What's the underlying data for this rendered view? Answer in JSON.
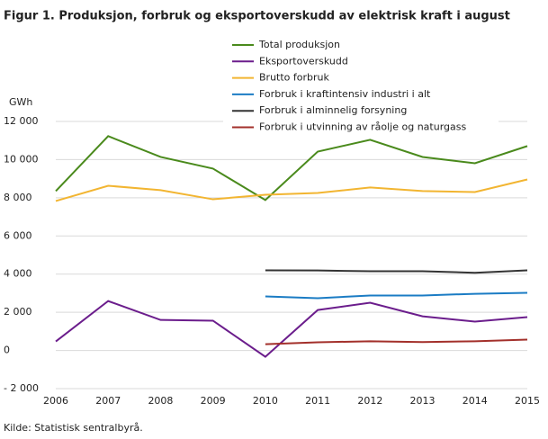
{
  "chart_data": {
    "type": "line",
    "title": "Figur 1. Produksjon, forbruk og eksportoverskudd av elektrisk kraft i august",
    "y_label": "GWh",
    "source": "Kilde: Statistisk sentralbyrå.",
    "categories": [
      "2006",
      "2007",
      "2008",
      "2009",
      "2010",
      "2011",
      "2012",
      "2013",
      "2014",
      "2015"
    ],
    "ylim": [
      -2000,
      12000
    ],
    "yticks": [
      {
        "value": -2000,
        "label": "- 2 000"
      },
      0,
      {
        "value": 2000,
        "label": "2 000"
      },
      {
        "value": 4000,
        "label": "4 000"
      },
      {
        "value": 6000,
        "label": "6 000"
      },
      {
        "value": 8000,
        "label": "8 000"
      },
      {
        "value": 10000,
        "label": "10 000"
      },
      {
        "value": 12000,
        "label": "12 000"
      }
    ],
    "grid": true,
    "series": [
      {
        "name": "Total produksjon",
        "color": "#4a8a1c",
        "values": [
          8350,
          11230,
          10140,
          9530,
          7880,
          10420,
          11040,
          10140,
          9810,
          10710
        ]
      },
      {
        "name": "Eksportoverskudd",
        "color": "#6b1d8c",
        "values": [
          470,
          2590,
          1600,
          1560,
          -330,
          2120,
          2500,
          1790,
          1510,
          1750
        ]
      },
      {
        "name": "Brutto forbruk",
        "color": "#f2b531",
        "values": [
          7830,
          8630,
          8400,
          7920,
          8160,
          8250,
          8540,
          8350,
          8300,
          8960
        ]
      },
      {
        "name": "Forbruk i kraftintensiv industri i alt",
        "color": "#1b7cc4",
        "values": [
          null,
          null,
          null,
          null,
          2830,
          2740,
          2880,
          2880,
          2970,
          3020
        ]
      },
      {
        "name": "Forbruk i alminnelig forsyning",
        "color": "#333333",
        "values": [
          null,
          null,
          null,
          null,
          4200,
          4190,
          4150,
          4150,
          4070,
          4200
        ]
      },
      {
        "name": "Forbruk i utvinning av råolje og naturgass",
        "color": "#a3302b",
        "values": [
          null,
          null,
          null,
          null,
          330,
          430,
          480,
          440,
          480,
          570
        ]
      }
    ]
  }
}
